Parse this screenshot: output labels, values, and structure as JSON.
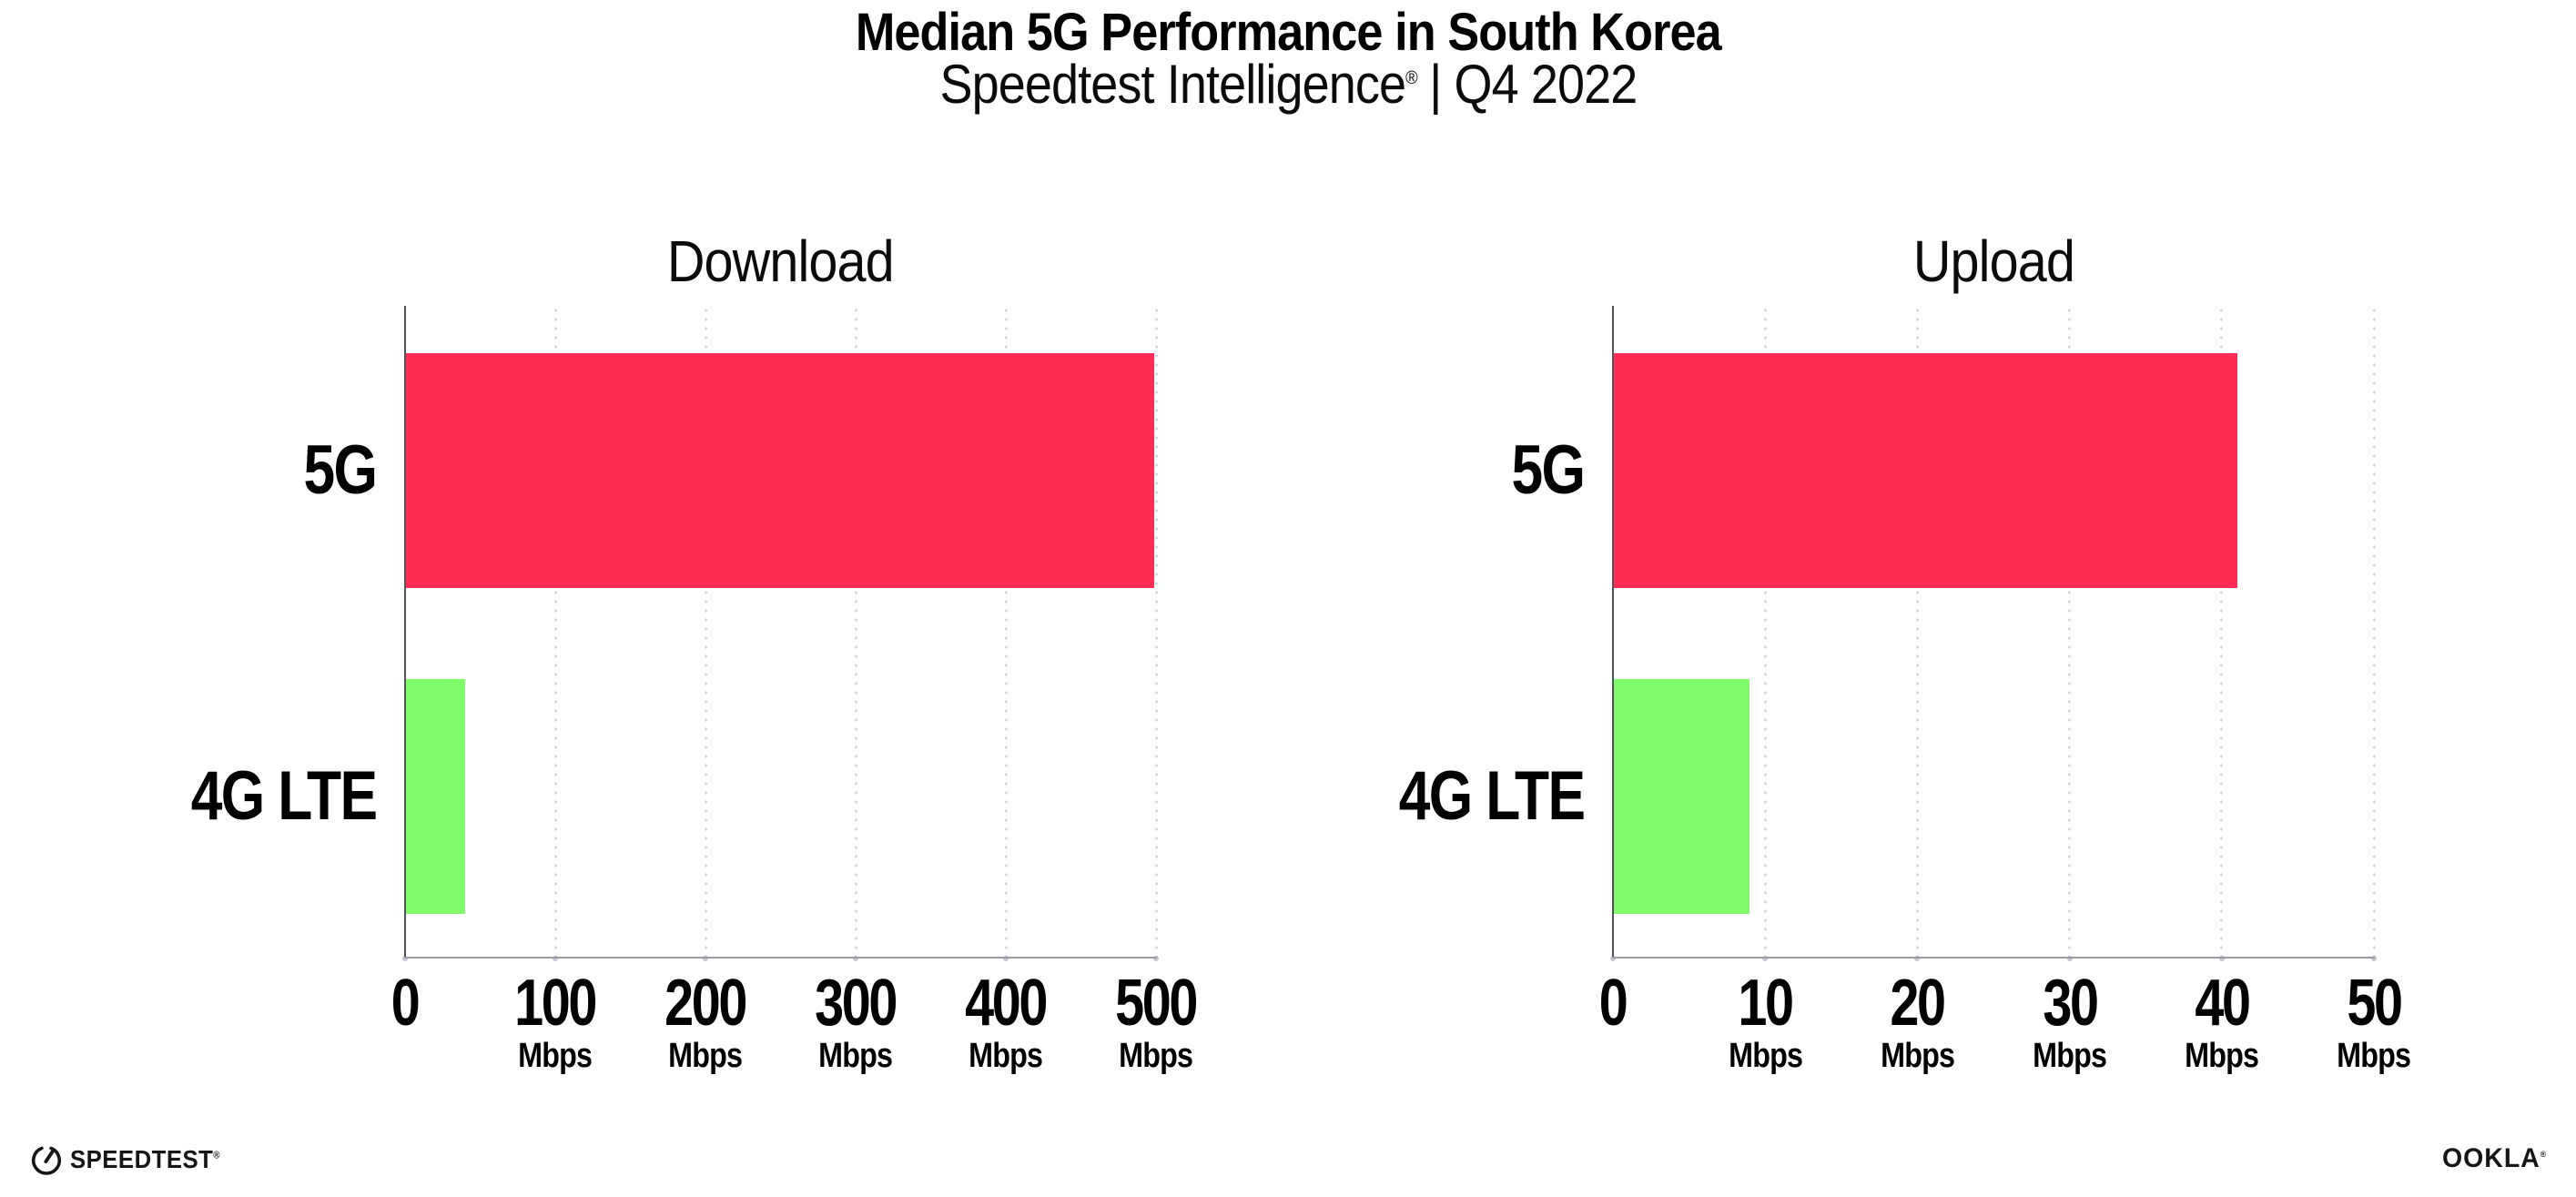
{
  "header": {
    "title": "Median 5G Performance in South Korea",
    "subtitle": {
      "brand": "Speedtest Intelligence",
      "mark": "®",
      "rest": "| Q4 2022"
    }
  },
  "chart_data": [
    {
      "type": "bar",
      "orientation": "horizontal",
      "title": "Download",
      "categories": [
        "5G",
        "4G LTE"
      ],
      "values": [
        499,
        40
      ],
      "unit": "Mbps",
      "xlim": [
        0,
        500
      ],
      "xticks": [
        0,
        100,
        200,
        300,
        400,
        500
      ],
      "bar_colors": [
        "#FF2D55",
        "#80FB69"
      ],
      "grid": "dotted-vertical",
      "legend": "none"
    },
    {
      "type": "bar",
      "orientation": "horizontal",
      "title": "Upload",
      "categories": [
        "5G",
        "4G LTE"
      ],
      "values": [
        41,
        9
      ],
      "unit": "Mbps",
      "xlim": [
        0,
        50
      ],
      "xticks": [
        0,
        10,
        20,
        30,
        40,
        50
      ],
      "bar_colors": [
        "#FF2D55",
        "#80FB69"
      ],
      "grid": "dotted-vertical",
      "legend": "none"
    }
  ],
  "footer": {
    "speedtest": {
      "label": "SPEEDTEST",
      "mark": "®",
      "icon": "speedtest-gauge-icon"
    },
    "ookla": {
      "label": "OOKLA",
      "mark": "®"
    }
  },
  "colors": {
    "bar_5g": "#FF2D55",
    "bar_4g_lte": "#80FB69",
    "grid_dot": "#D7D7E1",
    "y_axis": "#53535B",
    "x_axis": "#9B9BA3",
    "text": "#000000",
    "background": "#FFFFFF"
  }
}
